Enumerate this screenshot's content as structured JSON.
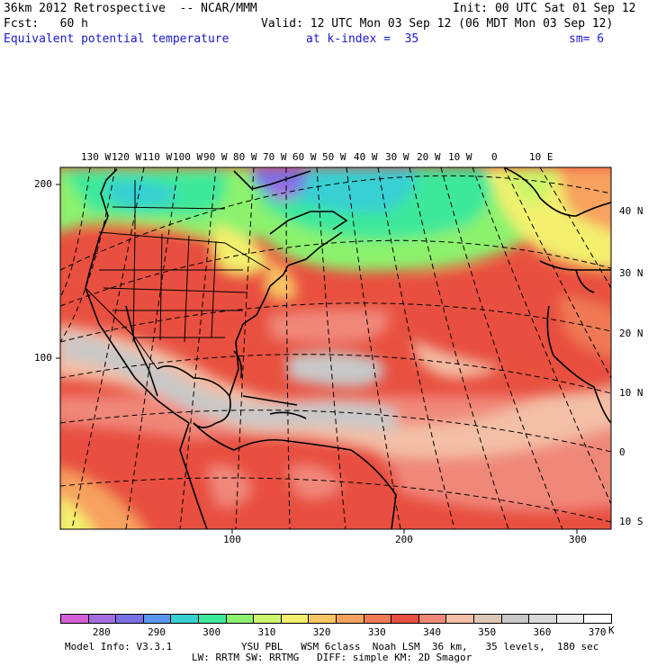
{
  "header": {
    "line1_left": "36km 2012 Retrospective  -- NCAR/MMM",
    "line1_right": "Init: 00 UTC Sat 01 Sep 12",
    "line2_left": "Fcst:   60 h",
    "line2_right": "Valid: 12 UTC Mon 03 Sep 12 (06 MDT Mon 03 Sep 12)",
    "field_name": "Equivalent potential temperature",
    "level": "at k-index =  35",
    "smoothing": "sm= 6"
  },
  "top_axis": [
    "130 W",
    "120 W",
    "110 W",
    "100 W",
    "90 W",
    "80 W",
    "70 W",
    "60 W",
    "50 W",
    "40 W",
    "30 W",
    "20 W",
    "10 W",
    "0",
    "10 E"
  ],
  "right_axis": [
    "40 N",
    "30 N",
    "20 N",
    "10 N",
    "0",
    "10 S"
  ],
  "left_axis": [
    "200",
    "100"
  ],
  "bottom_axis": [
    "100",
    "200",
    "300"
  ],
  "legend": {
    "labels": [
      "280",
      "290",
      "300",
      "310",
      "320",
      "330",
      "340",
      "350",
      "360",
      "370"
    ],
    "unit": "K",
    "colors": [
      "#d35fd6",
      "#a36ee0",
      "#7b6fe4",
      "#5a96ec",
      "#38d0d2",
      "#3de89a",
      "#8cf26d",
      "#ccf56b",
      "#f3f06e",
      "#f9c664",
      "#f7a25e",
      "#f07a55",
      "#e8503f",
      "#f0887a",
      "#f3bfa6",
      "#dcc8b8",
      "#c8c8c8",
      "#d8d8d8",
      "#ececec",
      "#ffffff"
    ]
  },
  "footer": {
    "model_info": "Model Info: V3.3.1",
    "physics_line1": "YSU PBL   WSM 6class  Noah LSM  36 km,   35 levels,  180 sec",
    "physics_line2": "LW: RRTM SW: RRTMG   DIFF: simple KM: 2D Smagor"
  }
}
